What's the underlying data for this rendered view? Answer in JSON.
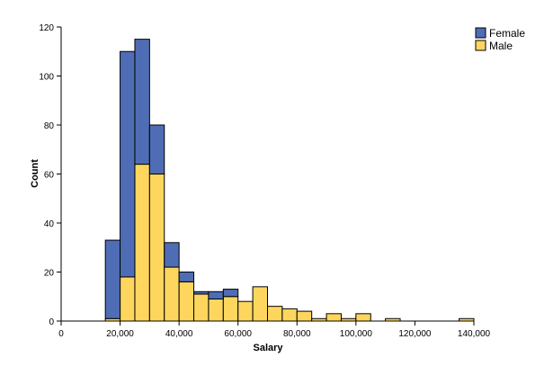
{
  "chart_data": {
    "type": "bar",
    "stacked": true,
    "histogram": true,
    "xlabel": "Salary",
    "ylabel": "Count",
    "xlim": [
      0,
      140000
    ],
    "ylim": [
      0,
      120
    ],
    "bin_width": 5000,
    "bin_starts": [
      15000,
      20000,
      25000,
      30000,
      35000,
      40000,
      45000,
      50000,
      55000,
      60000,
      65000,
      70000,
      75000,
      80000,
      85000,
      90000,
      95000,
      100000,
      105000,
      110000,
      115000,
      120000,
      125000,
      130000,
      135000
    ],
    "x_ticks": [
      0,
      20000,
      40000,
      60000,
      80000,
      100000,
      120000,
      140000
    ],
    "x_tick_labels": [
      "0",
      "20,000",
      "40,000",
      "60,000",
      "80,000",
      "100,000",
      "120,000",
      "140,000"
    ],
    "y_ticks": [
      0,
      20,
      40,
      60,
      80,
      100,
      120
    ],
    "y_tick_labels": [
      "0",
      "20",
      "40",
      "60",
      "80",
      "100",
      "120"
    ],
    "grid": false,
    "legend_position": "top-right",
    "series": [
      {
        "name": "Male",
        "color": "#fed65e",
        "values": [
          1,
          18,
          64,
          60,
          22,
          16,
          11,
          9,
          10,
          8,
          14,
          6,
          5,
          4,
          1,
          3,
          1,
          3,
          0,
          1,
          0,
          0,
          0,
          0,
          1
        ]
      },
      {
        "name": "Female",
        "color": "#4f6db4",
        "values": [
          32,
          92,
          51,
          20,
          10,
          4,
          1,
          3,
          3,
          0,
          0,
          0,
          0,
          0,
          0,
          0,
          0,
          0,
          0,
          0,
          0,
          0,
          0,
          0,
          0
        ]
      }
    ],
    "legend_order": [
      "Female",
      "Male"
    ]
  }
}
